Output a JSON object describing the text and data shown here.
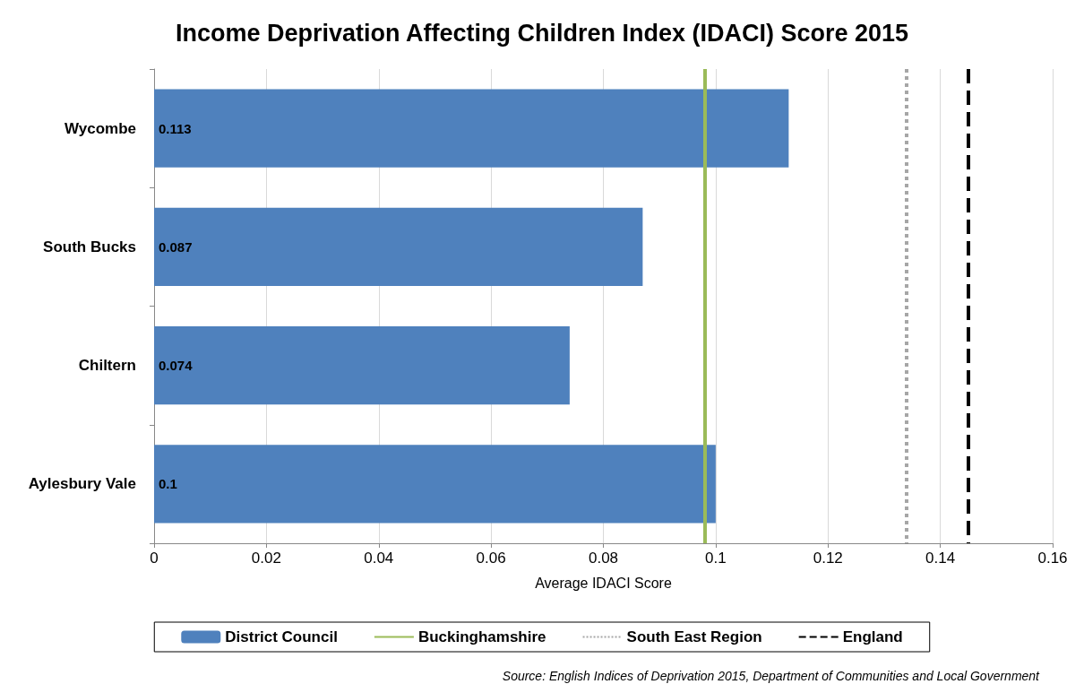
{
  "chart_data": {
    "type": "bar",
    "orientation": "horizontal",
    "title": "Income Deprivation Affecting Children Index (IDACI) Score 2015",
    "xlabel": "Average IDACI Score",
    "categories": [
      "Wycombe",
      "South Bucks",
      "Chiltern",
      "Aylesbury Vale"
    ],
    "series": [
      {
        "name": "District Council",
        "color": "#4f81bd",
        "values": [
          0.113,
          0.087,
          0.074,
          0.1
        ]
      }
    ],
    "data_labels": true,
    "xlim": [
      0,
      0.16
    ],
    "xticks": [
      0,
      0.02,
      0.04,
      0.06,
      0.08,
      0.1,
      0.12,
      0.14,
      0.16
    ],
    "grid": "x",
    "ref_lines": [
      {
        "axis": "x",
        "value": 0.098,
        "label": "Buckinghamshire",
        "color": "#9bbb59",
        "line_style": "solid"
      },
      {
        "axis": "x",
        "value": 0.134,
        "label": "South East Region",
        "color": "#a6a6a6",
        "line_style": "dotted"
      },
      {
        "axis": "x",
        "value": 0.145,
        "label": "England",
        "color": "#000000",
        "line_style": "dashed"
      }
    ],
    "legend": "bottom",
    "annotations": [
      "Source: English Indices of Deprivation 2015, Department of Communities and Local Government"
    ]
  }
}
